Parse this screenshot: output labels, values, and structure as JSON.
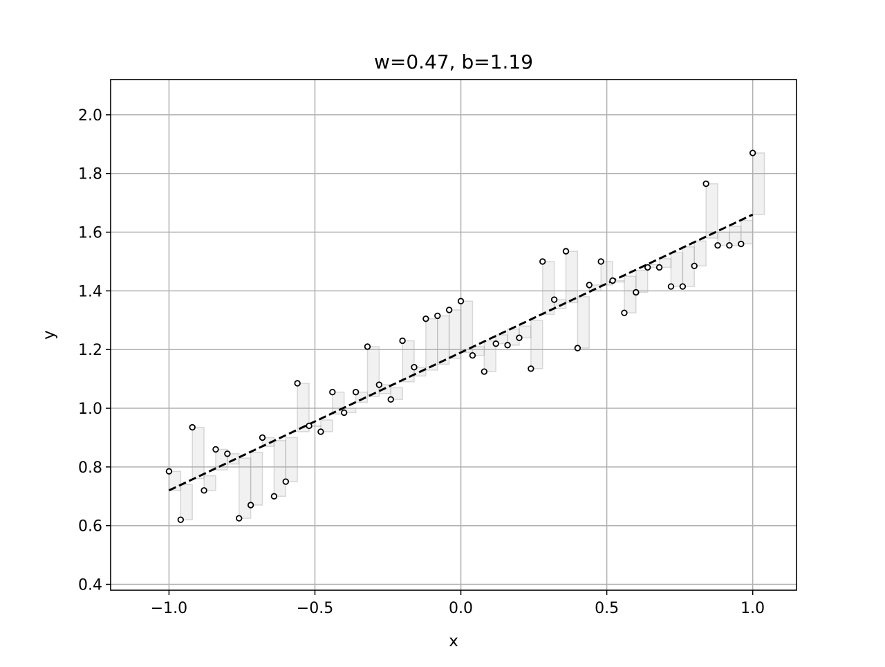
{
  "chart_data": {
    "type": "scatter",
    "title": "w=0.47, b=1.19",
    "xlabel": "x",
    "ylabel": "y",
    "xlim": [
      -1.2,
      1.15
    ],
    "ylim": [
      0.38,
      2.12
    ],
    "xticks": [
      -1.0,
      -0.5,
      0.0,
      0.5,
      1.0
    ],
    "xtick_labels": [
      "−1.0",
      "−0.5",
      "0.0",
      "0.5",
      "1.0"
    ],
    "yticks": [
      0.4,
      0.6,
      0.8,
      1.0,
      1.2,
      1.4,
      1.6,
      1.8,
      2.0
    ],
    "ytick_labels": [
      "0.4",
      "0.6",
      "0.8",
      "1.0",
      "1.2",
      "1.4",
      "1.6",
      "1.8",
      "2.0"
    ],
    "grid": true,
    "colors": {
      "points_edge": "#000000",
      "points_face": "#ffffff",
      "fit_line": "#000000",
      "squares_fill": "#c8c8c8",
      "squares_edge": "#9a9a9a",
      "grid": "#b0b0b0"
    },
    "fit_line": {
      "style": "dashed",
      "x": [
        -1.0,
        1.0
      ],
      "y": [
        0.72,
        1.66
      ]
    },
    "points": {
      "x": [
        -1.0,
        -0.96,
        -0.92,
        -0.88,
        -0.84,
        -0.8,
        -0.76,
        -0.72,
        -0.68,
        -0.64,
        -0.6,
        -0.56,
        -0.52,
        -0.48,
        -0.44,
        -0.4,
        -0.36,
        -0.32,
        -0.28,
        -0.24,
        -0.2,
        -0.16,
        -0.12,
        -0.08,
        -0.04,
        0.0,
        0.04,
        0.08,
        0.12,
        0.16,
        0.2,
        0.24,
        0.28,
        0.32,
        0.36,
        0.4,
        0.44,
        0.48,
        0.52,
        0.56,
        0.6,
        0.64,
        0.68,
        0.72,
        0.76,
        0.8,
        0.84,
        0.88,
        0.92,
        0.96,
        1.0
      ],
      "y": [
        0.785,
        0.62,
        0.935,
        0.72,
        0.86,
        0.845,
        0.625,
        0.67,
        0.9,
        0.7,
        0.75,
        1.085,
        0.94,
        0.92,
        1.055,
        0.985,
        1.055,
        1.21,
        1.08,
        1.03,
        1.23,
        1.14,
        1.305,
        1.315,
        1.335,
        1.365,
        1.18,
        1.125,
        1.22,
        1.215,
        1.24,
        1.135,
        1.5,
        1.37,
        1.535,
        1.205,
        1.42,
        1.5,
        1.435,
        1.325,
        1.395,
        1.48,
        1.48,
        1.415,
        1.415,
        1.485,
        1.765,
        1.555,
        1.555,
        1.56,
        1.87
      ]
    },
    "residual_squares": [
      {
        "x": [
          -1.0,
          -0.96
        ],
        "y": [
          0.785,
          0.72
        ]
      },
      {
        "x": [
          -0.96,
          -0.92
        ],
        "y": [
          0.62,
          0.74
        ]
      },
      {
        "x": [
          -0.92,
          -0.88
        ],
        "y": [
          0.935,
          0.76
        ]
      },
      {
        "x": [
          -0.88,
          -0.84
        ],
        "y": [
          0.72,
          0.77
        ]
      },
      {
        "x": [
          -0.84,
          -0.8
        ],
        "y": [
          0.86,
          0.79
        ]
      },
      {
        "x": [
          -0.8,
          -0.76
        ],
        "y": [
          0.845,
          0.81
        ]
      },
      {
        "x": [
          -0.76,
          -0.72
        ],
        "y": [
          0.625,
          0.83
        ]
      },
      {
        "x": [
          -0.72,
          -0.68
        ],
        "y": [
          0.67,
          0.85
        ]
      },
      {
        "x": [
          -0.68,
          -0.64
        ],
        "y": [
          0.9,
          0.87
        ]
      },
      {
        "x": [
          -0.64,
          -0.6
        ],
        "y": [
          0.7,
          0.89
        ]
      },
      {
        "x": [
          -0.6,
          -0.56
        ],
        "y": [
          0.75,
          0.9
        ]
      },
      {
        "x": [
          -0.56,
          -0.52
        ],
        "y": [
          1.085,
          0.92
        ]
      },
      {
        "x": [
          -0.52,
          -0.48
        ],
        "y": [
          0.94,
          0.94
        ]
      },
      {
        "x": [
          -0.48,
          -0.44
        ],
        "y": [
          0.92,
          0.96
        ]
      },
      {
        "x": [
          -0.44,
          -0.4
        ],
        "y": [
          1.055,
          0.98
        ]
      },
      {
        "x": [
          -0.4,
          -0.36
        ],
        "y": [
          0.985,
          1.0
        ]
      },
      {
        "x": [
          -0.36,
          -0.32
        ],
        "y": [
          1.055,
          1.02
        ]
      },
      {
        "x": [
          -0.32,
          -0.28
        ],
        "y": [
          1.21,
          1.04
        ]
      },
      {
        "x": [
          -0.28,
          -0.24
        ],
        "y": [
          1.08,
          1.05
        ]
      },
      {
        "x": [
          -0.24,
          -0.2
        ],
        "y": [
          1.03,
          1.07
        ]
      },
      {
        "x": [
          -0.2,
          -0.16
        ],
        "y": [
          1.23,
          1.09
        ]
      },
      {
        "x": [
          -0.16,
          -0.12
        ],
        "y": [
          1.14,
          1.11
        ]
      },
      {
        "x": [
          -0.12,
          -0.08
        ],
        "y": [
          1.305,
          1.13
        ]
      },
      {
        "x": [
          -0.08,
          -0.04
        ],
        "y": [
          1.315,
          1.15
        ]
      },
      {
        "x": [
          -0.04,
          0.0
        ],
        "y": [
          1.335,
          1.17
        ]
      },
      {
        "x": [
          0.0,
          0.04
        ],
        "y": [
          1.365,
          1.19
        ]
      },
      {
        "x": [
          0.04,
          0.08
        ],
        "y": [
          1.18,
          1.21
        ]
      },
      {
        "x": [
          0.08,
          0.12
        ],
        "y": [
          1.125,
          1.23
        ]
      },
      {
        "x": [
          0.12,
          0.16
        ],
        "y": [
          1.22,
          1.25
        ]
      },
      {
        "x": [
          0.16,
          0.2
        ],
        "y": [
          1.215,
          1.27
        ]
      },
      {
        "x": [
          0.2,
          0.24
        ],
        "y": [
          1.24,
          1.28
        ]
      },
      {
        "x": [
          0.24,
          0.28
        ],
        "y": [
          1.135,
          1.3
        ]
      },
      {
        "x": [
          0.28,
          0.32
        ],
        "y": [
          1.5,
          1.32
        ]
      },
      {
        "x": [
          0.32,
          0.36
        ],
        "y": [
          1.37,
          1.34
        ]
      },
      {
        "x": [
          0.36,
          0.4
        ],
        "y": [
          1.535,
          1.36
        ]
      },
      {
        "x": [
          0.4,
          0.44
        ],
        "y": [
          1.205,
          1.38
        ]
      },
      {
        "x": [
          0.44,
          0.48
        ],
        "y": [
          1.42,
          1.4
        ]
      },
      {
        "x": [
          0.48,
          0.52
        ],
        "y": [
          1.5,
          1.42
        ]
      },
      {
        "x": [
          0.52,
          0.56
        ],
        "y": [
          1.435,
          1.43
        ]
      },
      {
        "x": [
          0.56,
          0.6
        ],
        "y": [
          1.325,
          1.45
        ]
      },
      {
        "x": [
          0.6,
          0.64
        ],
        "y": [
          1.395,
          1.47
        ]
      },
      {
        "x": [
          0.64,
          0.68
        ],
        "y": [
          1.48,
          1.49
        ]
      },
      {
        "x": [
          0.68,
          0.72
        ],
        "y": [
          1.48,
          1.51
        ]
      },
      {
        "x": [
          0.72,
          0.76
        ],
        "y": [
          1.415,
          1.53
        ]
      },
      {
        "x": [
          0.76,
          0.8
        ],
        "y": [
          1.415,
          1.55
        ]
      },
      {
        "x": [
          0.8,
          0.84
        ],
        "y": [
          1.485,
          1.57
        ]
      },
      {
        "x": [
          0.84,
          0.88
        ],
        "y": [
          1.765,
          1.58
        ]
      },
      {
        "x": [
          0.88,
          0.92
        ],
        "y": [
          1.555,
          1.6
        ]
      },
      {
        "x": [
          0.92,
          0.96
        ],
        "y": [
          1.555,
          1.62
        ]
      },
      {
        "x": [
          0.96,
          1.0
        ],
        "y": [
          1.56,
          1.64
        ]
      },
      {
        "x": [
          1.0,
          1.04
        ],
        "y": [
          1.87,
          1.66
        ]
      }
    ]
  }
}
